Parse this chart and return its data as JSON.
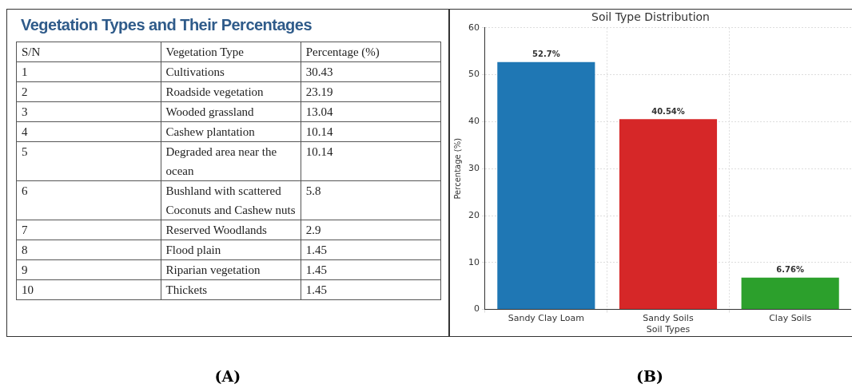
{
  "chart_data": [
    {
      "type": "other",
      "title": "Vegetation Types and Their Percentages",
      "categories": [
        "Cultivations",
        "Roadside vegetation",
        "Wooded grassland",
        "Cashew plantation",
        "Degraded area near the ocean",
        "Bushland with scattered Coconuts and Cashew nuts",
        "Reserved Woodlands",
        "Flood plain",
        "Riparian vegetation",
        "Thickets"
      ],
      "values": [
        30.43,
        23.19,
        13.04,
        10.14,
        10.14,
        5.8,
        2.9,
        1.45,
        1.45,
        1.45
      ],
      "data_labels": true,
      "annotations": [
        "S/N",
        "Vegetation Type",
        "Percentage (%)",
        "1",
        "2",
        "3",
        "4",
        "5",
        "6",
        "7",
        "8",
        "9",
        "10",
        "(A)"
      ]
    },
    {
      "type": "bar",
      "title": "Soil Type Distribution",
      "xlabel": "Soil Types",
      "ylabel": "Percentage (%)",
      "categories": [
        "Sandy Clay Loam",
        "Sandy Soils",
        "Clay Soils"
      ],
      "values": [
        52.7,
        40.54,
        6.76
      ],
      "colors": [
        "#1f77b4",
        "#d62728",
        "#2ca02c"
      ],
      "value_labels": [
        "52.7%",
        "40.54%",
        "6.76%"
      ],
      "ylim": [
        0,
        60
      ],
      "yticks": [
        0,
        10,
        20,
        30,
        40,
        50,
        60
      ],
      "grid": true,
      "legend": false,
      "annotations": [
        "(B)"
      ]
    }
  ]
}
